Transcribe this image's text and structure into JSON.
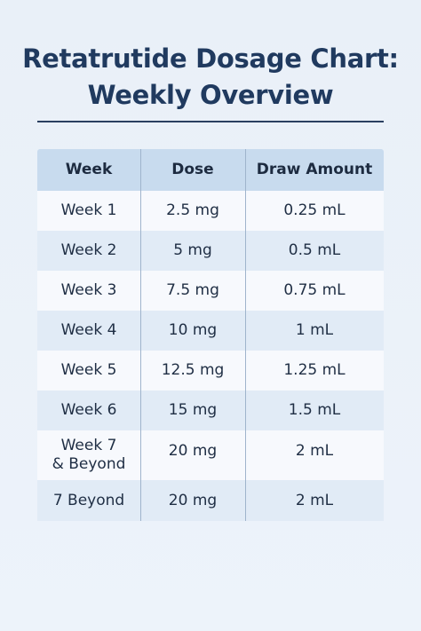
{
  "title": {
    "line1": "Retatrutide Dosage Chart:",
    "line2": "Weekly Overview"
  },
  "table": {
    "headers": [
      "Week",
      "Dose",
      "Draw Amount"
    ],
    "rows": [
      {
        "week": "Week 1",
        "dose": "2.5 mg",
        "draw": "0.25 mL"
      },
      {
        "week": "Week 2",
        "dose": "5 mg",
        "draw": "0.5 mL"
      },
      {
        "week": "Week 3",
        "dose": "7.5 mg",
        "draw": "0.75 mL"
      },
      {
        "week": "Week 4",
        "dose": "10 mg",
        "draw": "1 mL"
      },
      {
        "week": "Week 5",
        "dose": "12.5 mg",
        "draw": "1.25 mL"
      },
      {
        "week": "Week 6",
        "dose": "15 mg",
        "draw": "1.5 mL"
      },
      {
        "week": "Week 7\n& Beyond",
        "dose": "20 mg",
        "draw": "2 mL"
      },
      {
        "week": "7 Beyond",
        "dose": "20 mg",
        "draw": "2 mL"
      }
    ]
  },
  "colors": {
    "title": "#203a5f",
    "header_bg": "#c8dbee",
    "row_light": "#f7f9fd",
    "row_dark": "#e1ebf6",
    "background": "#eaf1f9"
  }
}
